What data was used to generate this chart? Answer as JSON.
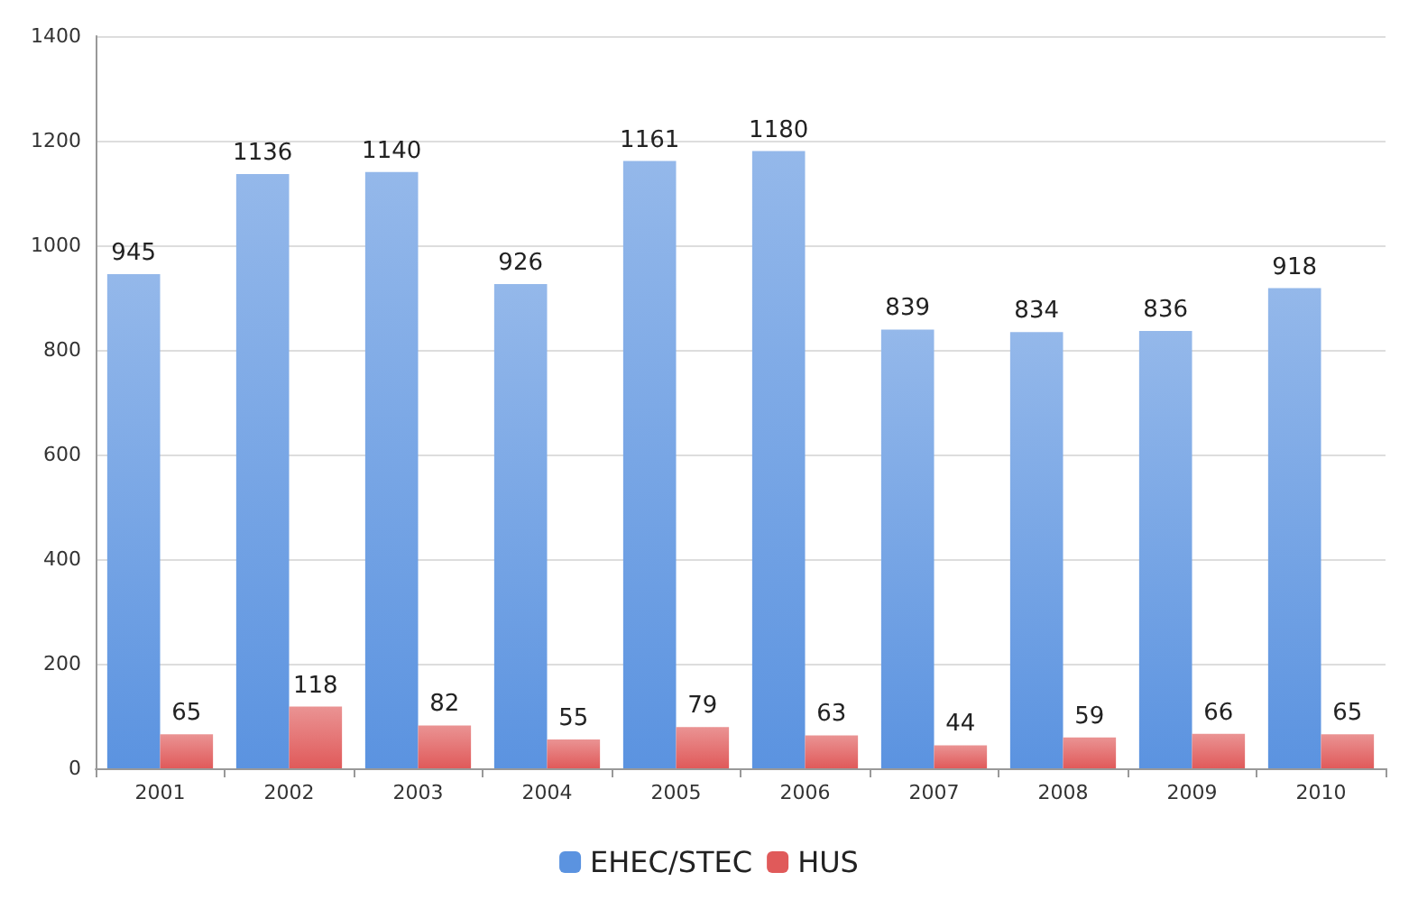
{
  "chart_data": {
    "type": "bar",
    "categories": [
      "2001",
      "2002",
      "2003",
      "2004",
      "2005",
      "2006",
      "2007",
      "2008",
      "2009",
      "2010"
    ],
    "series": [
      {
        "name": "EHEC/STEC",
        "color": "#5b93e0",
        "values": [
          945,
          1136,
          1140,
          926,
          1161,
          1180,
          839,
          834,
          836,
          918
        ]
      },
      {
        "name": "HUS",
        "color": "#e05a5a",
        "values": [
          65,
          118,
          82,
          55,
          79,
          63,
          44,
          59,
          66,
          65
        ]
      }
    ],
    "ylim": [
      0,
      1400
    ],
    "yticks": [
      0,
      200,
      400,
      600,
      800,
      1000,
      1200,
      1400
    ],
    "grid": "y",
    "legend": "bottom",
    "data_labels": true
  }
}
